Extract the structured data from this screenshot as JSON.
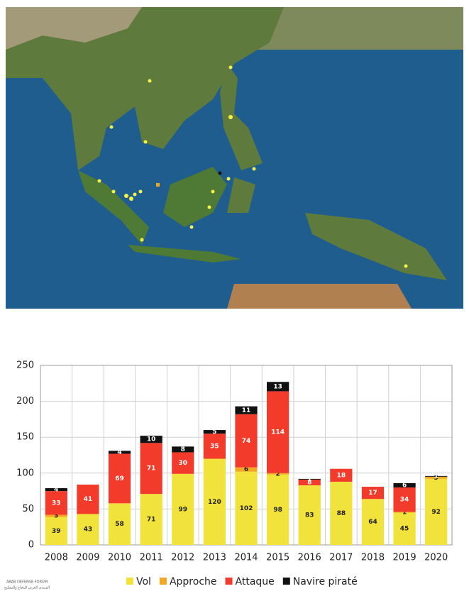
{
  "chart_data": {
    "type": "stacked_bar",
    "categories": [
      "2008",
      "2009",
      "2010",
      "2011",
      "2012",
      "2013",
      "2014",
      "2015",
      "2016",
      "2017",
      "2018",
      "2019",
      "2020"
    ],
    "series": [
      {
        "name": "Vol",
        "color": "#f2e23c",
        "label_color": "#222222",
        "values": [
          39,
          43,
          58,
          71,
          99,
          120,
          102,
          98,
          83,
          88,
          64,
          45,
          92
        ]
      },
      {
        "name": "Approche",
        "color": "#f5a623",
        "label_color": "#222222",
        "values": [
          3,
          null,
          null,
          null,
          null,
          null,
          6,
          2,
          null,
          null,
          null,
          1,
          3
        ]
      },
      {
        "name": "Attaque",
        "color": "#f23b2b",
        "label_color": "#ffffff",
        "values": [
          33,
          41,
          69,
          71,
          30,
          35,
          74,
          114,
          8,
          18,
          17,
          34,
          null
        ]
      },
      {
        "name": "Navire piraté",
        "color": "#111111",
        "label_color": "#ffffff",
        "values": [
          4,
          null,
          4,
          10,
          8,
          5,
          11,
          13,
          1,
          null,
          null,
          6,
          1
        ]
      }
    ],
    "ylim": [
      0,
      250
    ],
    "yticks": [
      0,
      50,
      100,
      150,
      200,
      250
    ],
    "grid": true,
    "legend": "bottom",
    "watermark": [
      "ARAB DEFENSE FORUM",
      "المنتدى العربي للدفاع والتسليح"
    ]
  }
}
